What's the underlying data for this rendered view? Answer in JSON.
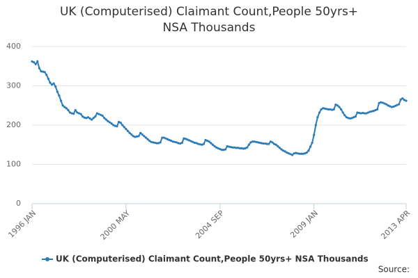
{
  "chart_data": {
    "type": "line",
    "title": "UK (Computerised) Claimant Count,People 50yrs+ NSA Thousands",
    "source": "Source:",
    "categories": [
      "1996 JAN",
      null,
      null,
      null,
      null,
      null,
      null,
      null,
      null,
      null,
      null,
      null,
      null,
      null,
      null,
      null,
      null,
      null,
      null,
      null,
      null,
      null,
      null,
      null,
      null,
      null,
      null,
      null,
      null,
      null,
      null,
      null,
      null,
      null,
      null,
      null,
      null,
      null,
      null,
      null,
      null,
      null,
      null,
      null,
      null,
      null,
      null,
      null,
      null,
      null,
      null,
      null,
      "2000 MAY",
      null,
      null,
      null,
      null,
      null,
      null,
      null,
      null,
      null,
      null,
      null,
      null,
      null,
      null,
      null,
      null,
      null,
      null,
      null,
      null,
      null,
      null,
      null,
      null,
      null,
      null,
      null,
      null,
      null,
      null,
      null,
      null,
      null,
      null,
      null,
      null,
      null,
      null,
      null,
      null,
      null,
      null,
      null,
      null,
      null,
      null,
      null,
      null,
      null,
      null,
      null,
      "2004 SEP",
      null,
      null,
      null,
      null,
      null,
      null,
      null,
      null,
      null,
      null,
      null,
      null,
      null,
      null,
      null,
      null,
      null,
      null,
      null,
      null,
      null,
      null,
      null,
      null,
      null,
      null,
      null,
      null,
      null,
      null,
      null,
      null,
      null,
      null,
      null,
      null,
      null,
      null,
      null,
      null,
      null,
      null,
      null,
      null,
      null,
      null,
      null,
      null,
      null,
      null,
      null,
      "2009 JAN",
      null,
      null,
      null,
      null,
      null,
      null,
      null,
      null,
      null,
      null,
      null,
      null,
      null,
      null,
      null,
      null,
      null,
      null,
      null,
      null,
      null,
      null,
      null,
      null,
      null,
      null,
      null,
      null,
      null,
      null,
      null,
      null,
      null,
      null,
      null,
      null,
      null,
      null,
      null,
      null,
      null,
      null,
      null,
      null,
      null,
      null,
      null,
      null,
      null,
      null,
      "2013 APR"
    ],
    "series": [
      {
        "name": "UK (Computerised) Claimant Count,People 50yrs+ NSA Thousands",
        "color": "#2b7bb9",
        "values": [
          362,
          360,
          355,
          362,
          345,
          337,
          336,
          335,
          328,
          318,
          308,
          303,
          306,
          298,
          285,
          275,
          262,
          250,
          246,
          243,
          238,
          232,
          230,
          229,
          238,
          232,
          230,
          228,
          222,
          219,
          218,
          220,
          217,
          214,
          218,
          222,
          230,
          228,
          226,
          224,
          218,
          214,
          210,
          207,
          204,
          200,
          198,
          197,
          208,
          206,
          200,
          195,
          190,
          185,
          180,
          176,
          172,
          170,
          171,
          172,
          180,
          176,
          172,
          168,
          164,
          160,
          157,
          156,
          155,
          154,
          154,
          156,
          168,
          168,
          166,
          164,
          162,
          160,
          158,
          157,
          156,
          154,
          153,
          155,
          166,
          165,
          163,
          161,
          159,
          157,
          155,
          154,
          152,
          151,
          150,
          152,
          162,
          160,
          158,
          154,
          150,
          146,
          143,
          141,
          139,
          137,
          137,
          138,
          146,
          145,
          144,
          143,
          143,
          142,
          142,
          141,
          141,
          140,
          141,
          143,
          150,
          156,
          158,
          158,
          157,
          156,
          155,
          154,
          153,
          153,
          152,
          152,
          158,
          156,
          152,
          150,
          146,
          142,
          138,
          135,
          133,
          130,
          128,
          126,
          124,
          128,
          129,
          128,
          127,
          127,
          127,
          128,
          130,
          135,
          145,
          155,
          175,
          200,
          220,
          232,
          240,
          243,
          242,
          241,
          240,
          240,
          239,
          240,
          252,
          250,
          246,
          240,
          232,
          225,
          220,
          218,
          217,
          218,
          220,
          222,
          232,
          231,
          230,
          231,
          230,
          230,
          232,
          234,
          235,
          236,
          238,
          240,
          256,
          258,
          257,
          255,
          253,
          250,
          248,
          246,
          247,
          249,
          251,
          253,
          265,
          268,
          264,
          262
        ]
      }
    ],
    "ylim": [
      0,
      400
    ],
    "yticks": [
      0,
      100,
      200,
      300,
      400
    ],
    "grid": true,
    "legend": "bottom"
  }
}
